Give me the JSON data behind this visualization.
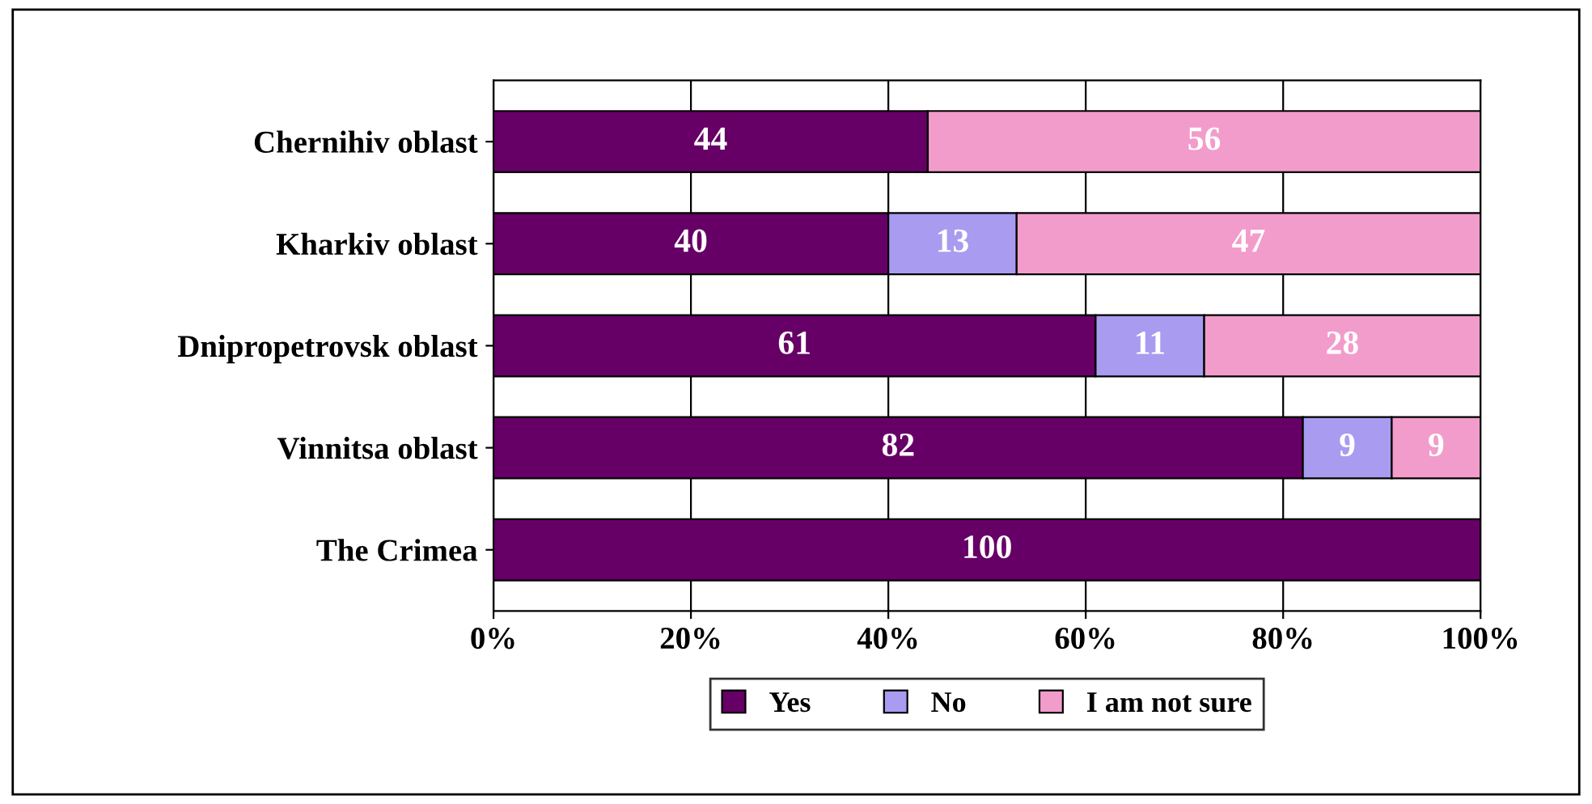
{
  "chart_data": {
    "type": "bar",
    "orientation": "horizontal",
    "stacked": true,
    "categories": [
      "Chernihiv oblast",
      "Kharkiv oblast",
      "Dnipropetrovsk oblast",
      "Vinnitsa oblast",
      "The Crimea"
    ],
    "series": [
      {
        "name": "Yes",
        "color": "#660066",
        "values": [
          44,
          40,
          61,
          82,
          100
        ],
        "value_labels": [
          "44",
          "40",
          "61",
          "82",
          "100"
        ]
      },
      {
        "name": "No",
        "color": "#a99bf0",
        "values": [
          null,
          13,
          11,
          9,
          null
        ],
        "value_labels": [
          null,
          "13",
          "11",
          "9",
          null
        ]
      },
      {
        "name": "I am not sure",
        "color": "#f29ccb",
        "values": [
          56,
          47,
          28,
          9,
          null
        ],
        "value_labels": [
          "56",
          "47",
          "28",
          "9",
          null
        ]
      }
    ],
    "xlim": [
      0,
      100
    ],
    "xticks": [
      {
        "value": 0,
        "label": "0%"
      },
      {
        "value": 20,
        "label": "20%"
      },
      {
        "value": 40,
        "label": "40%"
      },
      {
        "value": 60,
        "label": "60%"
      },
      {
        "value": 80,
        "label": "80%"
      },
      {
        "value": 100,
        "label": "100%"
      }
    ],
    "grid": "x",
    "legend": "bottom"
  }
}
